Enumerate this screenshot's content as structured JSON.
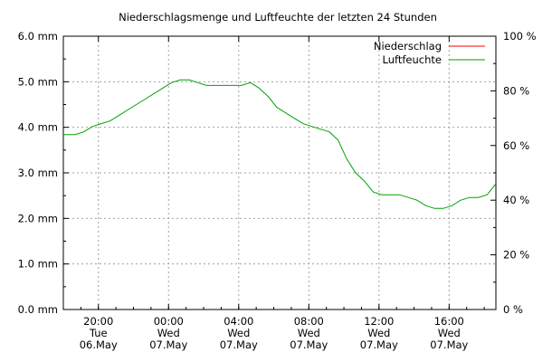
{
  "chart_data": {
    "type": "line",
    "title": "Niederschlagsmenge und Luftfeuchte der letzten 24 Stunden",
    "y_left": {
      "ylim": [
        0,
        6
      ],
      "ticks": [
        0,
        1,
        2,
        3,
        4,
        5,
        6
      ],
      "tick_labels": [
        "0.0 mm",
        "1.0 mm",
        "2.0 mm",
        "3.0 mm",
        "4.0 mm",
        "5.0 mm",
        "6.0 mm"
      ]
    },
    "y_right": {
      "ylim": [
        0,
        100
      ],
      "ticks": [
        0,
        20,
        40,
        60,
        80,
        100
      ],
      "tick_labels": [
        "0 %",
        "20 %",
        "40 %",
        "60 %",
        "80 %",
        "100 %"
      ]
    },
    "x_axis": {
      "xlim": [
        "2024-05-06 18:00",
        "2024-05-07 18:40"
      ],
      "tick_labels": [
        {
          "time": "20:00",
          "day": "Tue",
          "date": "06.May"
        },
        {
          "time": "00:00",
          "day": "Wed",
          "date": "07.May"
        },
        {
          "time": "04:00",
          "day": "Wed",
          "date": "07.May"
        },
        {
          "time": "08:00",
          "day": "Wed",
          "date": "07.May"
        },
        {
          "time": "12:00",
          "day": "Wed",
          "date": "07.May"
        },
        {
          "time": "16:00",
          "day": "Wed",
          "date": "07.May"
        }
      ]
    },
    "grid": true,
    "legend_position": "top-right",
    "series": [
      {
        "name": "Niederschlag",
        "axis": "left",
        "color": "#ff0000",
        "x": [],
        "values": []
      },
      {
        "name": "Luftfeuchte",
        "axis": "right",
        "color": "#00a000",
        "x": [
          "06.05 18:00",
          "06.05 18:40",
          "06.05 19:10",
          "06.05 19:40",
          "06.05 20:10",
          "06.05 20:40",
          "06.05 21:10",
          "06.05 21:40",
          "06.05 22:10",
          "06.05 22:40",
          "06.05 23:10",
          "06.05 23:40",
          "07.05 00:10",
          "07.05 00:40",
          "07.05 01:10",
          "07.05 01:40",
          "07.05 02:10",
          "07.05 02:40",
          "07.05 03:10",
          "07.05 03:40",
          "07.05 04:10",
          "07.05 04:40",
          "07.05 05:10",
          "07.05 05:40",
          "07.05 06:10",
          "07.05 06:40",
          "07.05 07:10",
          "07.05 07:40",
          "07.05 08:10",
          "07.05 08:40",
          "07.05 09:10",
          "07.05 09:40",
          "07.05 10:10",
          "07.05 10:40",
          "07.05 11:10",
          "07.05 11:40",
          "07.05 12:10",
          "07.05 12:40",
          "07.05 13:10",
          "07.05 13:40",
          "07.05 14:10",
          "07.05 14:40",
          "07.05 15:10",
          "07.05 15:40",
          "07.05 16:10",
          "07.05 16:40",
          "07.05 17:10",
          "07.05 17:40",
          "07.05 18:10",
          "07.05 18:40"
        ],
        "values": [
          64,
          64,
          65,
          67,
          68,
          69,
          71,
          73,
          75,
          77,
          79,
          81,
          83,
          84,
          84,
          83,
          82,
          82,
          82,
          82,
          82,
          83,
          81,
          78,
          74,
          72,
          70,
          68,
          67,
          66,
          65,
          62,
          55,
          50,
          47,
          43,
          42,
          42,
          42,
          41,
          40,
          38,
          37,
          37,
          38,
          40,
          41,
          41,
          42,
          46
        ]
      }
    ]
  }
}
